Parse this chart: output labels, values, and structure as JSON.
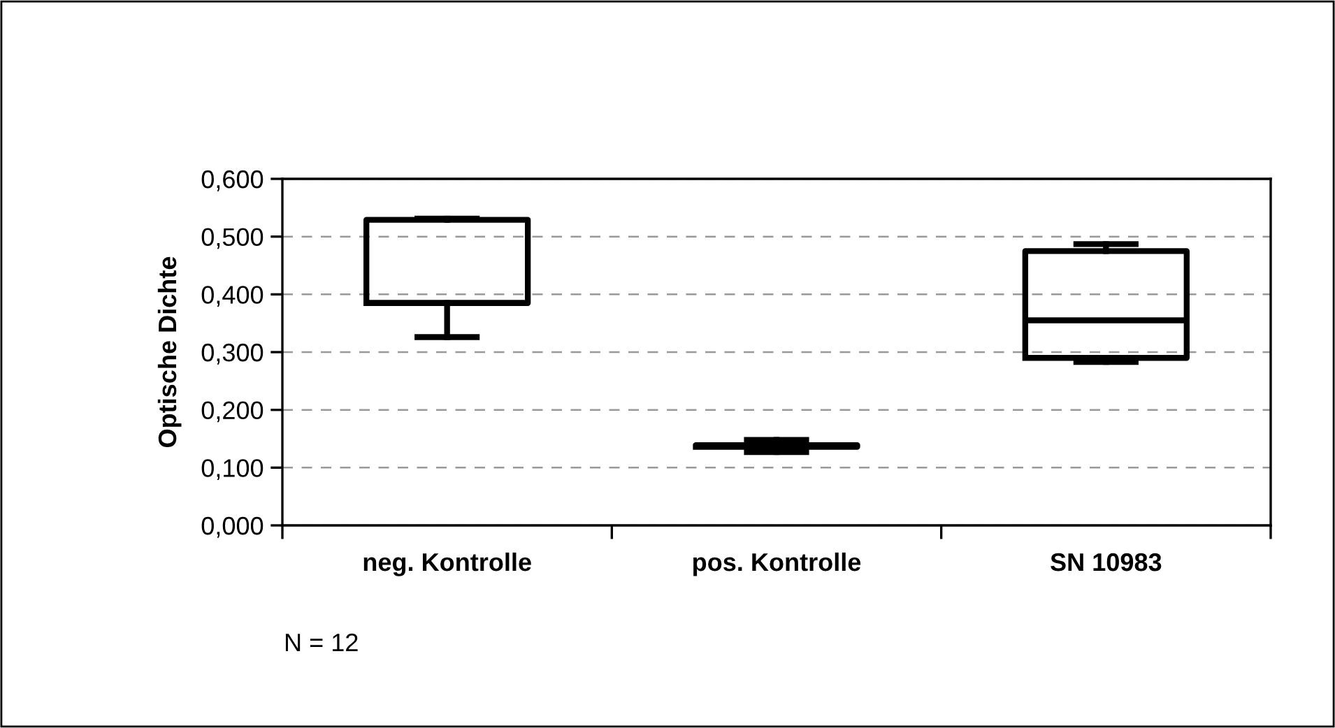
{
  "chart_data": {
    "type": "box",
    "ylabel": "Optische Dichte",
    "categories": [
      "neg. Kontrolle",
      "pos. Kontrolle",
      "SN 10983"
    ],
    "boxes": [
      {
        "low": 0.326,
        "q1": 0.385,
        "median": 0.385,
        "q3": 0.529,
        "high": 0.531
      },
      {
        "low": 0.127,
        "q1": 0.136,
        "median": 0.138,
        "q3": 0.139,
        "high": 0.148
      },
      {
        "low": 0.283,
        "q1": 0.29,
        "median": 0.355,
        "q3": 0.475,
        "high": 0.487
      }
    ],
    "ylim": [
      0,
      0.6
    ],
    "yticks": [
      {
        "value": 0,
        "label": "0,000"
      },
      {
        "value": 0.1,
        "label": "0,100"
      },
      {
        "value": 0.2,
        "label": "0,200"
      },
      {
        "value": 0.3,
        "label": "0,300"
      },
      {
        "value": 0.4,
        "label": "0,400"
      },
      {
        "value": 0.5,
        "label": "0,500"
      },
      {
        "value": 0.6,
        "label": "0,600"
      }
    ],
    "grid": "y",
    "legend": false,
    "annotations": [
      "N = 12"
    ]
  }
}
